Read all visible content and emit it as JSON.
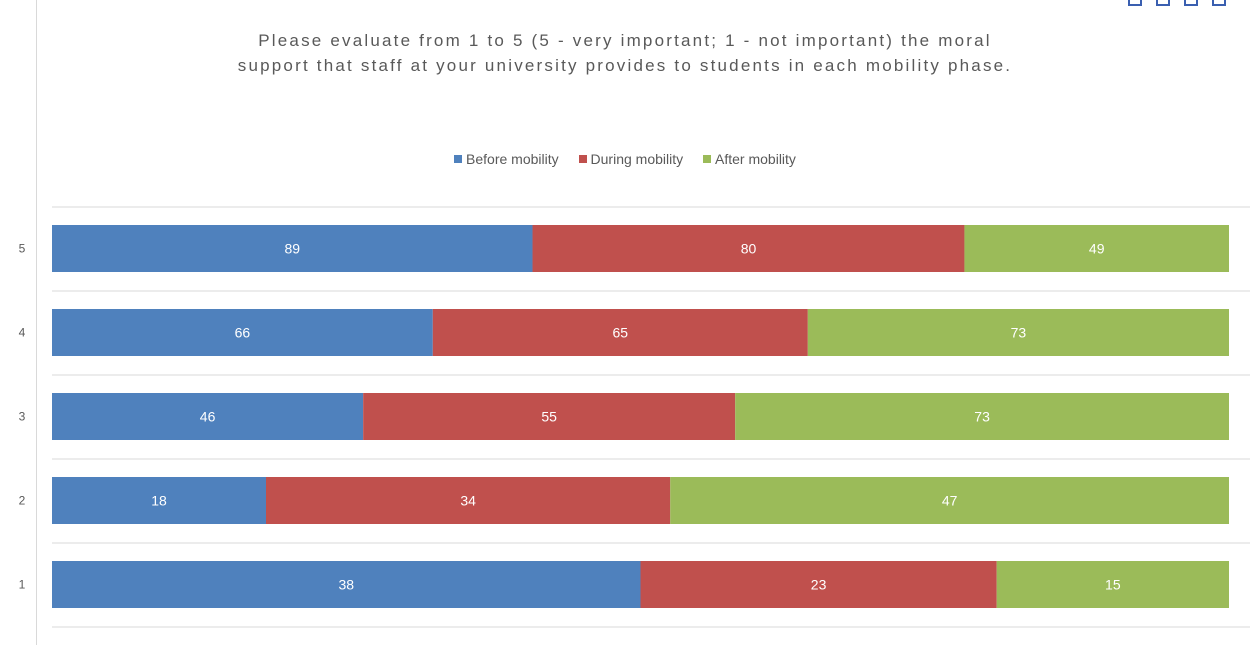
{
  "chart_data": {
    "type": "bar",
    "orientation": "horizontal",
    "stacked": "100%",
    "title_lines": [
      "Please evaluate from 1 to 5 (5 - very important; 1 - not important) the moral",
      "support that staff at your university provides to students in each mobility phase."
    ],
    "categories": [
      "5",
      "4",
      "3",
      "2",
      "1"
    ],
    "series": [
      {
        "name": "Before mobility",
        "color": "#4f81bd",
        "values": [
          89,
          66,
          46,
          18,
          38
        ]
      },
      {
        "name": "During mobility",
        "color": "#c0504d",
        "values": [
          80,
          65,
          55,
          34,
          23
        ]
      },
      {
        "name": "After mobility",
        "color": "#9bbb59",
        "values": [
          49,
          73,
          73,
          47,
          15
        ]
      }
    ],
    "legend_position": "top",
    "grid": true,
    "data_labels": true
  }
}
